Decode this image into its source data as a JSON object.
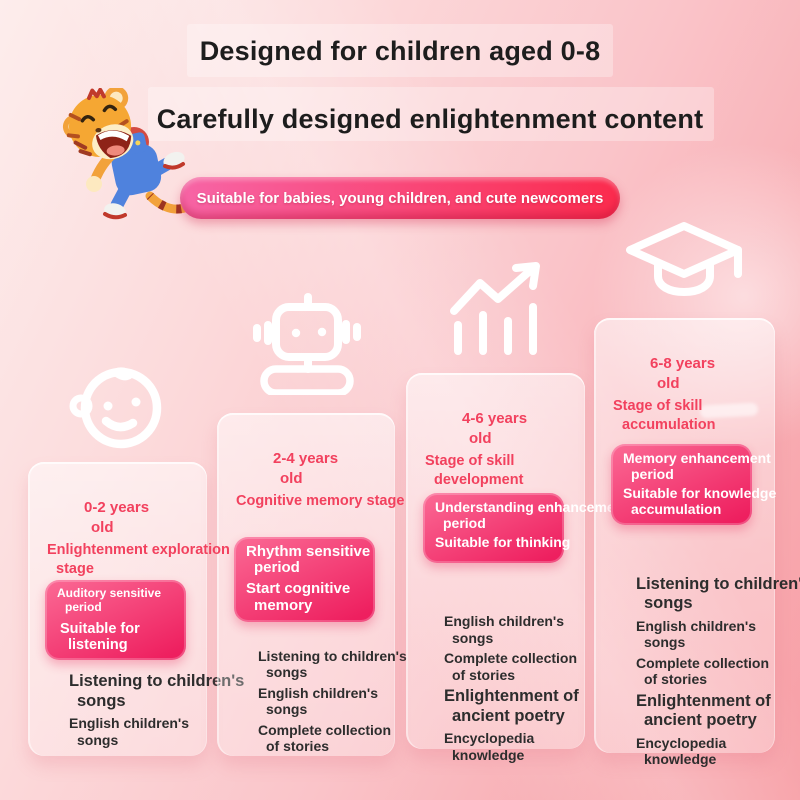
{
  "header": {
    "title": "Designed for children aged 0-8",
    "subtitle": "Carefully designed enlightenment content",
    "banner": "Suitable for babies, young children, and cute newcomers"
  },
  "stages": [
    {
      "icon": "baby-face-icon",
      "age": [
        "0-2 years",
        "old"
      ],
      "stage": [
        "Enlightenment exploration",
        "stage"
      ],
      "badge": {
        "period": [
          "Auditory sensitive",
          "period"
        ],
        "suitability": [
          "Suitable for",
          "listening"
        ]
      },
      "items": [
        [
          "Listening to children's",
          "songs"
        ],
        [
          "English children's",
          "songs"
        ]
      ]
    },
    {
      "icon": "robot-icon",
      "age": [
        "2-4 years",
        "old"
      ],
      "stage": [
        "Cognitive memory stage"
      ],
      "badge": {
        "period": [
          "Rhythm sensitive",
          "period"
        ],
        "suitability": [
          "Start cognitive",
          "memory"
        ]
      },
      "items": [
        [
          "Listening to children's",
          "songs"
        ],
        [
          "English children's",
          "songs"
        ],
        [
          "Complete collection",
          "of stories"
        ]
      ]
    },
    {
      "icon": "growth-chart-icon",
      "age": [
        "4-6 years",
        "old"
      ],
      "stage": [
        "Stage of skill",
        "development"
      ],
      "badge": {
        "period": [
          "Understanding enhancement",
          "period"
        ],
        "suitability": [
          "Suitable for thinking"
        ]
      },
      "items": [
        [
          "English children's",
          "songs"
        ],
        [
          "Complete collection",
          "of stories"
        ],
        [
          "Enlightenment of",
          "ancient poetry"
        ],
        [
          "Encyclopedia",
          "knowledge"
        ]
      ]
    },
    {
      "icon": "graduation-cap-icon",
      "age": [
        "6-8 years",
        "old"
      ],
      "stage": [
        "Stage of skill",
        "accumulation"
      ],
      "badge": {
        "period": [
          "Memory enhancement",
          "period"
        ],
        "suitability": [
          "Suitable for knowledge",
          "accumulation"
        ]
      },
      "items": [
        [
          "Listening to children's",
          "songs"
        ],
        [
          "English children's",
          "songs"
        ],
        [
          "Complete collection",
          "of stories"
        ],
        [
          "Enlightenment of",
          "ancient poetry"
        ],
        [
          "Encyclopedia",
          "knowledge"
        ]
      ]
    }
  ],
  "colors": {
    "accent_red": "#f2415e",
    "badge_start": "#fb6a95",
    "badge_end": "#ee1f5f",
    "banner_start": "#f765a6",
    "banner_end": "#fb2b4d",
    "text_dark": "#2d2d2d"
  }
}
